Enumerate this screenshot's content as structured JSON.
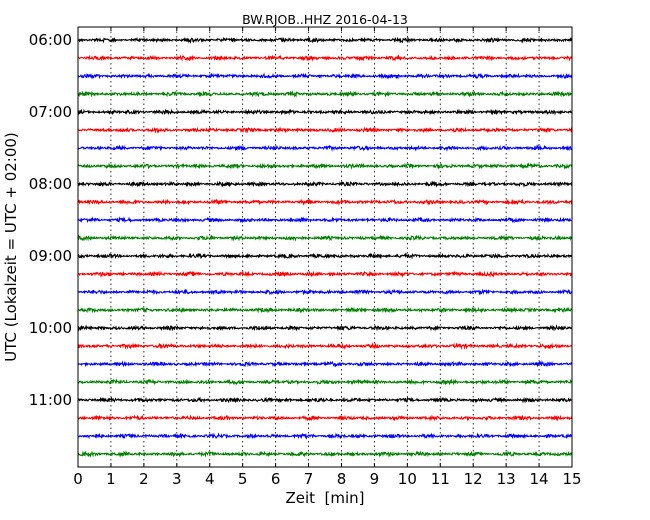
{
  "chart_data": {
    "type": "line",
    "title": "BW.RJOB..HHZ 2016-04-13",
    "xlabel": "Zeit  [min]",
    "ylabel": "UTC (Lokalzeit = UTC + 02:00)",
    "xlim": [
      0,
      15
    ],
    "x_ticks": [
      "0",
      "1",
      "2",
      "3",
      "4",
      "5",
      "6",
      "7",
      "8",
      "9",
      "10",
      "11",
      "12",
      "13",
      "14",
      "15"
    ],
    "y_ticks": [
      "06:00",
      "07:00",
      "08:00",
      "09:00",
      "10:00",
      "11:00"
    ],
    "grid": "vertical dotted",
    "trace_minutes": 15,
    "series_colors": [
      "#000000",
      "#ff0000",
      "#0000ff",
      "#008000"
    ],
    "trace_starts": [
      "06:00",
      "06:15",
      "06:30",
      "06:45",
      "07:00",
      "07:15",
      "07:30",
      "07:45",
      "08:00",
      "08:15",
      "08:30",
      "08:45",
      "09:00",
      "09:15",
      "09:30",
      "09:45",
      "10:00",
      "10:15",
      "10:30",
      "10:45",
      "11:00",
      "11:15",
      "11:30",
      "11:45"
    ]
  }
}
